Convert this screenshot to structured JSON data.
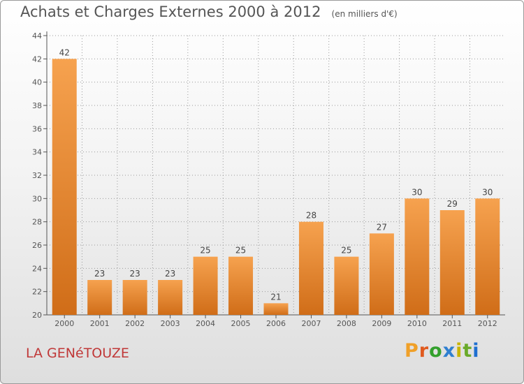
{
  "header": {
    "title": "Achats et Charges Externes 2000 à 2012",
    "unit": "(en milliers d'€)"
  },
  "footer": {
    "place": "LA GENéTOUZE",
    "brand": "Proxiti"
  },
  "colors": {
    "bar_light": "#f6a24f",
    "bar_dark": "#d06d18",
    "axis": "#555555",
    "grid": "#9a9a9a",
    "place_text": "#c03838",
    "logo_letters": [
      "#f0a028",
      "#e05a1e",
      "#33a02c",
      "#2f7fd0",
      "#c8b400",
      "#6aaa2a",
      "#1f6fd0"
    ]
  },
  "chart_data": {
    "type": "bar",
    "title": "Achats et Charges Externes 2000 à 2012",
    "subtitle": "(en milliers d'€)",
    "categories": [
      "2000",
      "2001",
      "2002",
      "2003",
      "2004",
      "2005",
      "2006",
      "2007",
      "2008",
      "2009",
      "2010",
      "2011",
      "2012"
    ],
    "values": [
      42,
      23,
      23,
      23,
      25,
      25,
      21,
      28,
      25,
      27,
      30,
      29,
      30
    ],
    "ylim": [
      20,
      44
    ],
    "yticks": [
      20,
      22,
      24,
      26,
      28,
      30,
      32,
      34,
      36,
      38,
      40,
      42,
      44
    ],
    "grid": true,
    "legend": "none"
  }
}
